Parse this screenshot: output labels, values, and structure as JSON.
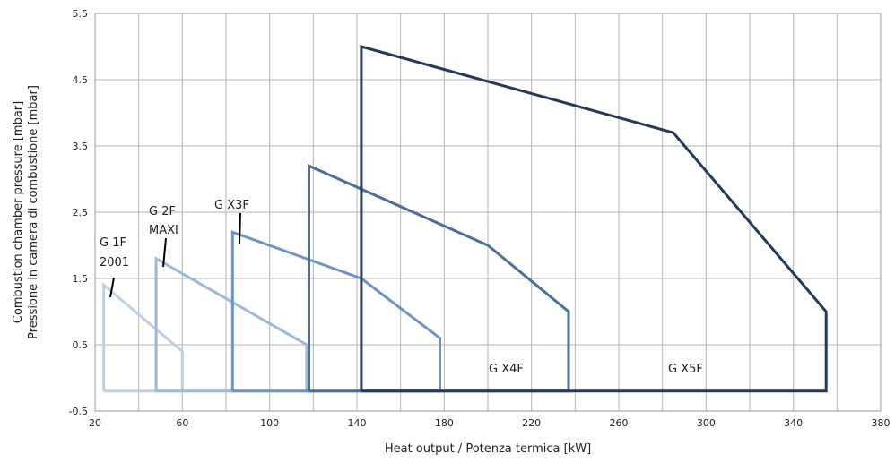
{
  "chart_data": {
    "type": "line",
    "title": "",
    "xlabel": "Heat output / Potenza termica [kW]",
    "ylabel_line1": "Combustion chamber pressure [mbar]",
    "ylabel_line2": "Pressione in camera di combustione [mbar]",
    "xlim": [
      20,
      380
    ],
    "ylim": [
      -0.5,
      5.5
    ],
    "x_ticks": [
      20,
      60,
      100,
      140,
      180,
      220,
      260,
      300,
      340,
      380
    ],
    "x_tick_labels": [
      "20",
      "60",
      "100",
      "140",
      "180",
      "220",
      "260",
      "300",
      "340",
      "380"
    ],
    "y_ticks": [
      -0.5,
      0.5,
      1.5,
      2.5,
      3.5,
      4.5,
      5.5
    ],
    "y_tick_labels": [
      "-0.5",
      "0.5",
      "1.5",
      "2.5",
      "3.5",
      "4.5",
      "5.5"
    ],
    "grid": true,
    "series": [
      {
        "name": "G 1F 2001",
        "label_lines": [
          "G 1F",
          "2001"
        ],
        "color": "#bdd0e3",
        "x": [
          24,
          24,
          60,
          60,
          24
        ],
        "y": [
          -0.2,
          1.4,
          0.4,
          -0.2,
          -0.2
        ]
      },
      {
        "name": "G 2F MAXI",
        "label_lines": [
          "G 2F",
          "MAXI"
        ],
        "color": "#9db9d8",
        "x": [
          48,
          48,
          117,
          117,
          48
        ],
        "y": [
          -0.2,
          1.8,
          0.5,
          -0.2,
          -0.2
        ]
      },
      {
        "name": "G X3F",
        "label_lines": [
          "G X3F"
        ],
        "color": "#6e94c6",
        "x": [
          83,
          83,
          142,
          178,
          178,
          83
        ],
        "y": [
          -0.2,
          2.2,
          1.5,
          0.6,
          -0.2,
          -0.2
        ]
      },
      {
        "name": "G X4F",
        "label_lines": [
          "G X4F"
        ],
        "color": "#4b6e9c",
        "x": [
          118,
          118,
          200,
          237,
          237,
          118
        ],
        "y": [
          -0.2,
          3.2,
          2.0,
          1.0,
          -0.2,
          -0.2
        ]
      },
      {
        "name": "G X5F",
        "label_lines": [
          "G X5F"
        ],
        "color": "#233a58",
        "x": [
          142,
          142,
          285,
          355,
          355,
          142
        ],
        "y": [
          -0.2,
          5.0,
          3.7,
          1.0,
          -0.2,
          -0.2
        ]
      }
    ]
  }
}
